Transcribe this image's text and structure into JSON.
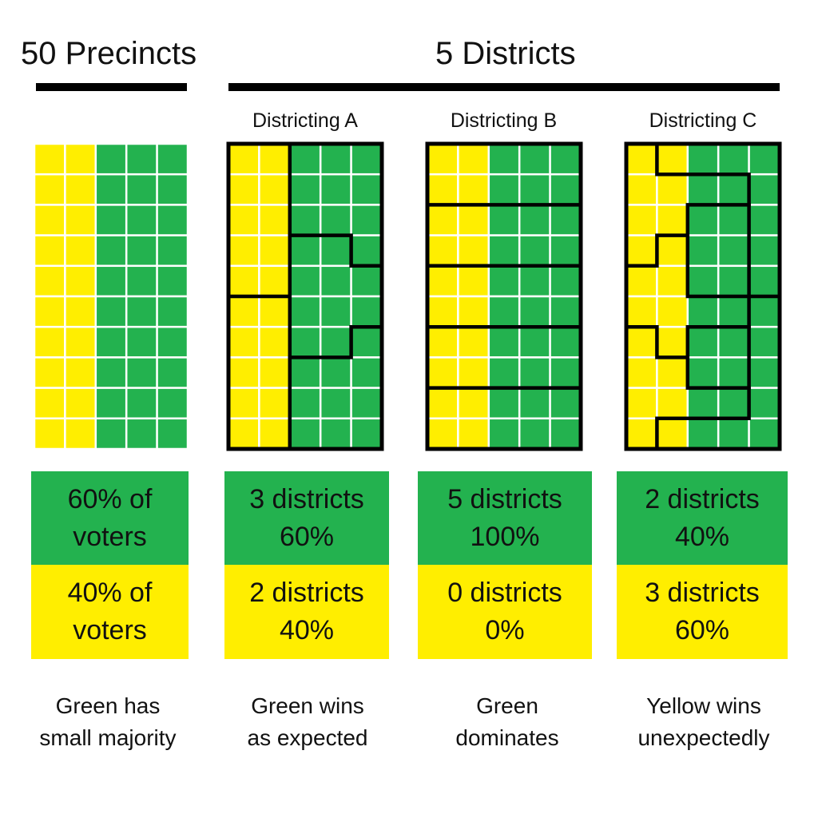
{
  "headers": {
    "precincts": "50 Precincts",
    "districts": "5 Districts"
  },
  "colors": {
    "green": "#23b24f",
    "yellow": "#ffee00",
    "border": "#000000",
    "gridline": "#ffffff"
  },
  "columns": [
    {
      "key": "precincts",
      "subheading": "",
      "green_box": {
        "line1": "60% of",
        "line2": "voters"
      },
      "yellow_box": {
        "line1": "40% of",
        "line2": "voters"
      },
      "caption": {
        "line1": "Green has",
        "line2": "small majority"
      }
    },
    {
      "key": "districting-a",
      "subheading": "Districting A",
      "green_box": {
        "line1": "3 districts",
        "line2": "60%"
      },
      "yellow_box": {
        "line1": "2 districts",
        "line2": "40%"
      },
      "caption": {
        "line1": "Green wins",
        "line2": "as expected"
      }
    },
    {
      "key": "districting-b",
      "subheading": "Districting B",
      "green_box": {
        "line1": "5 districts",
        "line2": "100%"
      },
      "yellow_box": {
        "line1": "0 districts",
        "line2": "0%"
      },
      "caption": {
        "line1": "Green",
        "line2": "dominates"
      }
    },
    {
      "key": "districting-c",
      "subheading": "Districting C",
      "green_box": {
        "line1": "2 districts",
        "line2": "40%"
      },
      "yellow_box": {
        "line1": "3 districts",
        "line2": "60%"
      },
      "caption": {
        "line1": "Yellow wins",
        "line2": "unexpectedly"
      }
    }
  ]
}
